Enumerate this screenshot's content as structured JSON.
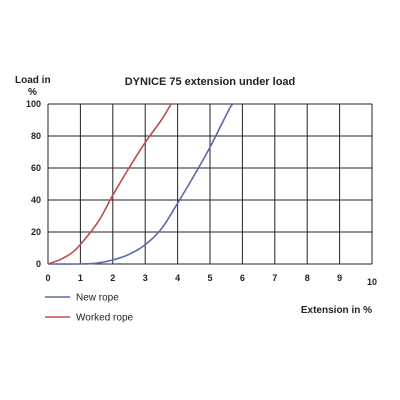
{
  "chart_data": {
    "type": "line",
    "title": "DYNICE 75 extension under load",
    "ylabel_line1": "Load in",
    "ylabel_line2": "%",
    "xlabel": "Extension in %",
    "xlim": [
      0,
      10
    ],
    "ylim": [
      0,
      100
    ],
    "x_ticks": [
      "0",
      "1",
      "2",
      "3",
      "4",
      "5",
      "6",
      "7",
      "8",
      "9",
      "10"
    ],
    "y_ticks": [
      "0",
      "20",
      "40",
      "60",
      "80",
      "100"
    ],
    "grid": true,
    "legend_position": "bottom-left",
    "series": [
      {
        "name": "New rope",
        "color": "#5b6aa8",
        "points": [
          [
            0,
            0
          ],
          [
            1,
            0
          ],
          [
            1.5,
            0.5
          ],
          [
            2,
            2.5
          ],
          [
            2.5,
            6
          ],
          [
            3,
            12
          ],
          [
            3.5,
            22
          ],
          [
            4,
            38
          ],
          [
            4.5,
            55
          ],
          [
            5,
            73
          ],
          [
            5.3,
            85
          ],
          [
            5.6,
            97
          ],
          [
            5.7,
            100
          ]
        ]
      },
      {
        "name": "Worked rope",
        "color": "#c04a4a",
        "points": [
          [
            0,
            0
          ],
          [
            0.4,
            3
          ],
          [
            0.8,
            8
          ],
          [
            1.2,
            17
          ],
          [
            1.6,
            28
          ],
          [
            2,
            43
          ],
          [
            2.5,
            60
          ],
          [
            3,
            76
          ],
          [
            3.5,
            90
          ],
          [
            3.8,
            100
          ]
        ]
      }
    ]
  }
}
